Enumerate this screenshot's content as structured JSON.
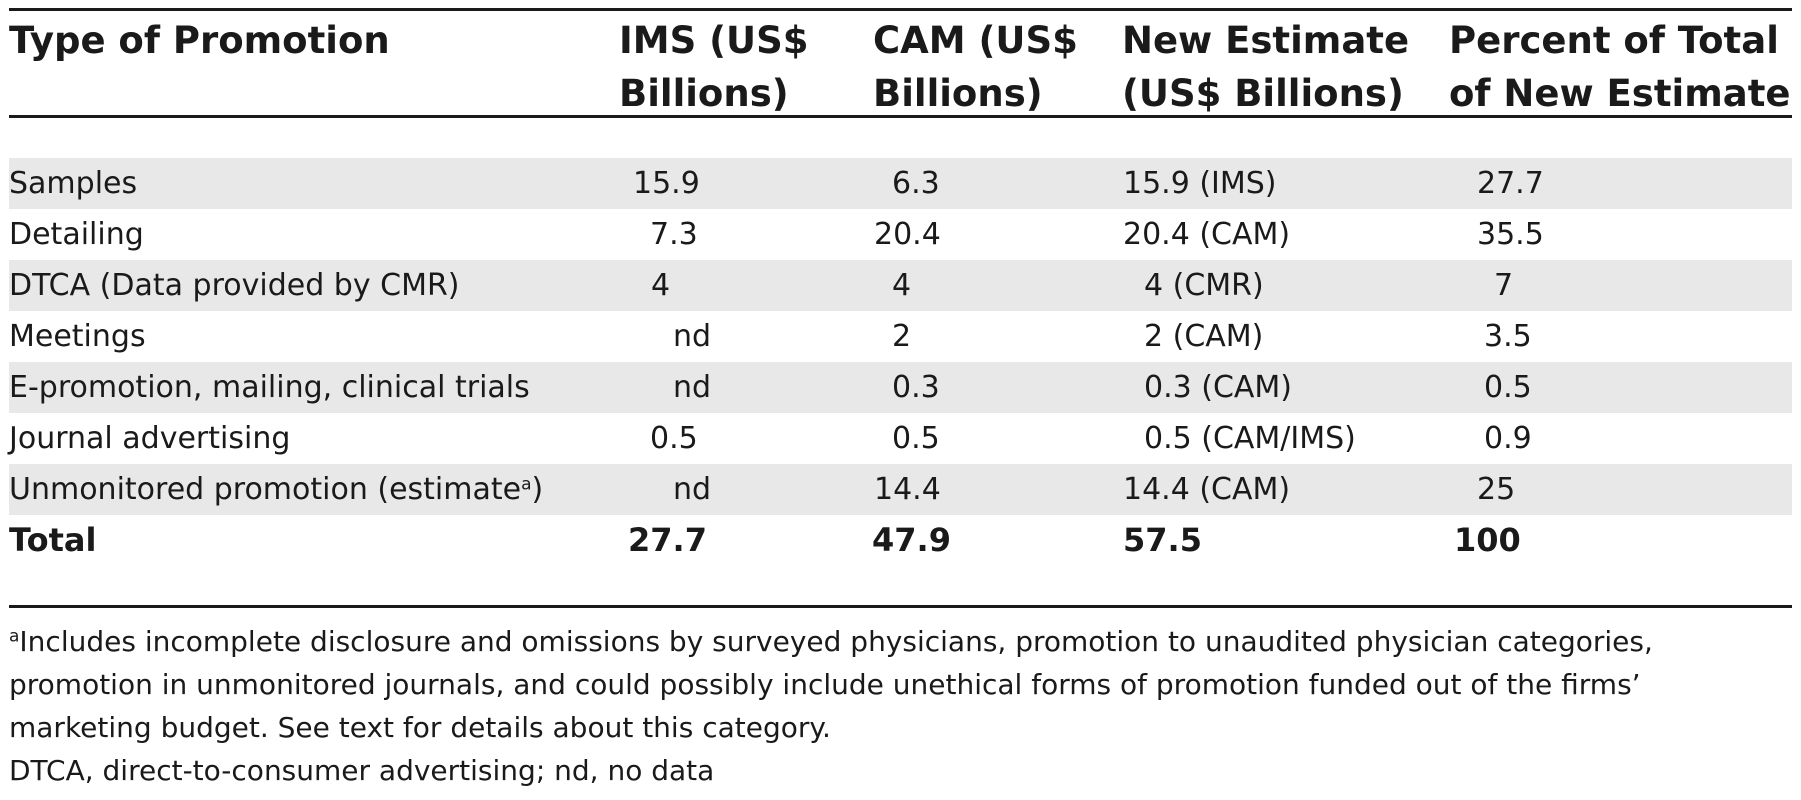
{
  "table": {
    "headers": [
      [
        "Type of Promotion"
      ],
      [
        "IMS  (US$",
        "Billions)"
      ],
      [
        "CAM (US$",
        "Billions)"
      ],
      [
        "New Estimate",
        "(US$ Billions)"
      ],
      [
        "Percent of Total",
        "of New Estimate"
      ]
    ],
    "rows": [
      {
        "type": "Samples",
        "ims": "15.9",
        "cam": "6.3",
        "new_estimate": "15.9 (IMS)",
        "percent": "27.7"
      },
      {
        "type": "Detailing",
        "ims": "7.3",
        "cam": "20.4",
        "new_estimate": "20.4 (CAM)",
        "percent": "35.5"
      },
      {
        "type": "DTCA (Data provided by CMR)",
        "ims": "4",
        "cam": "4",
        "new_estimate": "4 (CMR)",
        "percent": "7"
      },
      {
        "type": "Meetings",
        "ims": "nd",
        "cam": "2",
        "new_estimate": "2 (CAM)",
        "percent": "3.5"
      },
      {
        "type": "E-promotion, mailing, clinical trials",
        "ims": "nd",
        "cam": "0.3",
        "new_estimate": "0.3 (CAM)",
        "percent": "0.5"
      },
      {
        "type": "Journal advertising",
        "ims": "0.5",
        "cam": "0.5",
        "new_estimate": "0.5 (CAM/IMS)",
        "percent": "0.9"
      },
      {
        "type": "Unmonitored promotion  (estimate",
        "type_superscript": "a",
        "type_suffix": ")",
        "ims": "nd",
        "cam": "14.4",
        "new_estimate": "14.4 (CAM)",
        "percent": "25"
      }
    ],
    "total": {
      "type": "Total",
      "ims": "27.7",
      "cam": "47.9",
      "new_estimate": "57.5",
      "percent": "100"
    }
  },
  "footnotes": {
    "a_marker": "a",
    "a_lines": [
      "Includes incomplete disclosure and omissions by surveyed physicians, promotion to unaudited physician categories,",
      "promotion in unmonitored journals, and could possibly include unethical forms of promotion funded out of the firms’",
      "marketing budget. See text for details about this category."
    ],
    "abbreviations": "DTCA, direct-to-consumer advertising; nd, no data"
  }
}
